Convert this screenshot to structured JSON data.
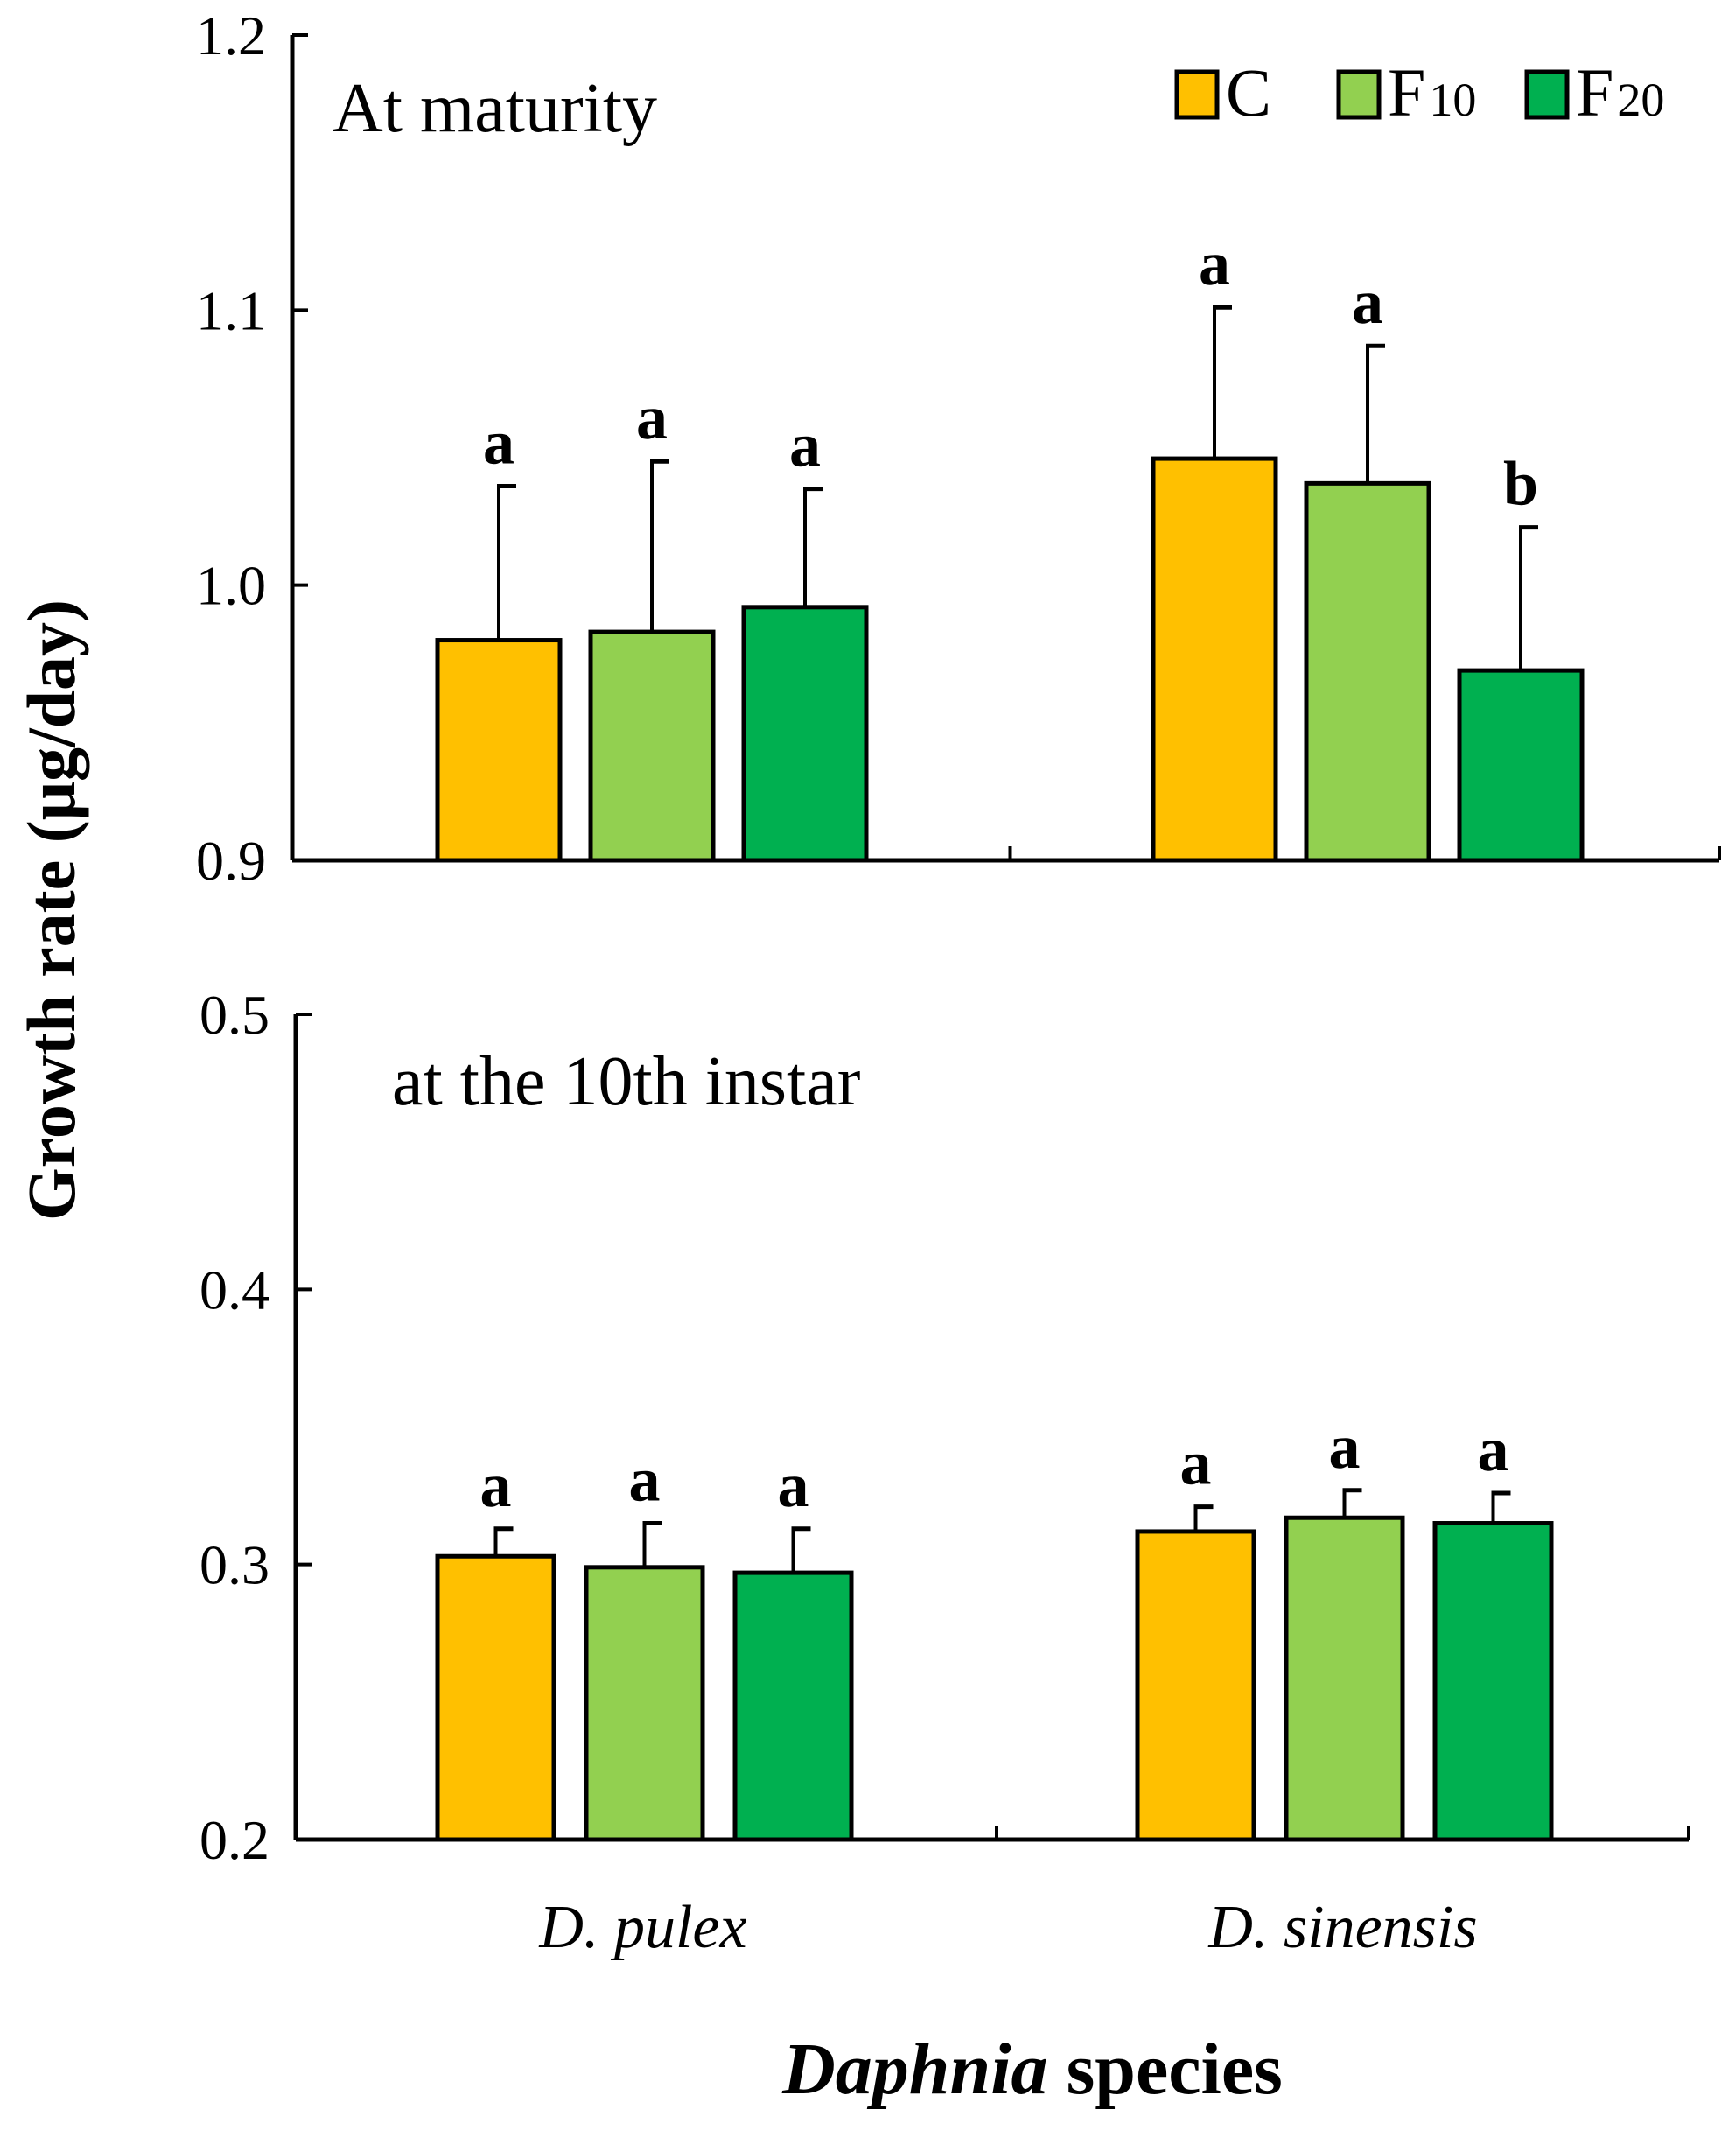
{
  "chart_data": {
    "type": "bar",
    "ylabel": "Growth rate (μg/day)",
    "xlabel_italic": "Daphnia",
    "xlabel_rest": " species",
    "categories": [
      "D. pulex",
      "D. sinensis"
    ],
    "legend": [
      {
        "key": "C",
        "main": "C",
        "sub": "",
        "color": "#FFC000"
      },
      {
        "key": "F10",
        "main": "F",
        "sub": "10",
        "color": "#92D050"
      },
      {
        "key": "F20",
        "main": "F",
        "sub": "20",
        "color": "#00B050"
      }
    ],
    "legend_position": "top-right",
    "panels": [
      {
        "id": "maturity",
        "title": "At maturity",
        "ylim": [
          0.9,
          1.2
        ],
        "yticks": [
          "0.9",
          "1.0",
          "1.1",
          "1.2"
        ],
        "series": [
          {
            "name": "C",
            "values": [
              0.98,
              1.046
            ],
            "errors": [
              0.056,
              0.055
            ],
            "letters": [
              "a",
              "a"
            ]
          },
          {
            "name": "F10",
            "values": [
              0.983,
              1.037
            ],
            "errors": [
              0.062,
              0.05
            ],
            "letters": [
              "a",
              "a"
            ]
          },
          {
            "name": "F20",
            "values": [
              0.992,
              0.969
            ],
            "errors": [
              0.043,
              0.052
            ],
            "letters": [
              "a",
              "b"
            ]
          }
        ]
      },
      {
        "id": "instar10",
        "title": "at the 10th instar",
        "ylim": [
          0.2,
          0.5
        ],
        "yticks": [
          "0.2",
          "0.3",
          "0.4",
          "0.5"
        ],
        "series": [
          {
            "name": "C",
            "values": [
              0.303,
              0.312
            ],
            "errors": [
              0.01,
              0.009
            ],
            "letters": [
              "a",
              "a"
            ]
          },
          {
            "name": "F10",
            "values": [
              0.299,
              0.317
            ],
            "errors": [
              0.016,
              0.01
            ],
            "letters": [
              "a",
              "a"
            ]
          },
          {
            "name": "F20",
            "values": [
              0.297,
              0.315
            ],
            "errors": [
              0.016,
              0.011
            ],
            "letters": [
              "a",
              "a"
            ]
          }
        ]
      }
    ]
  }
}
